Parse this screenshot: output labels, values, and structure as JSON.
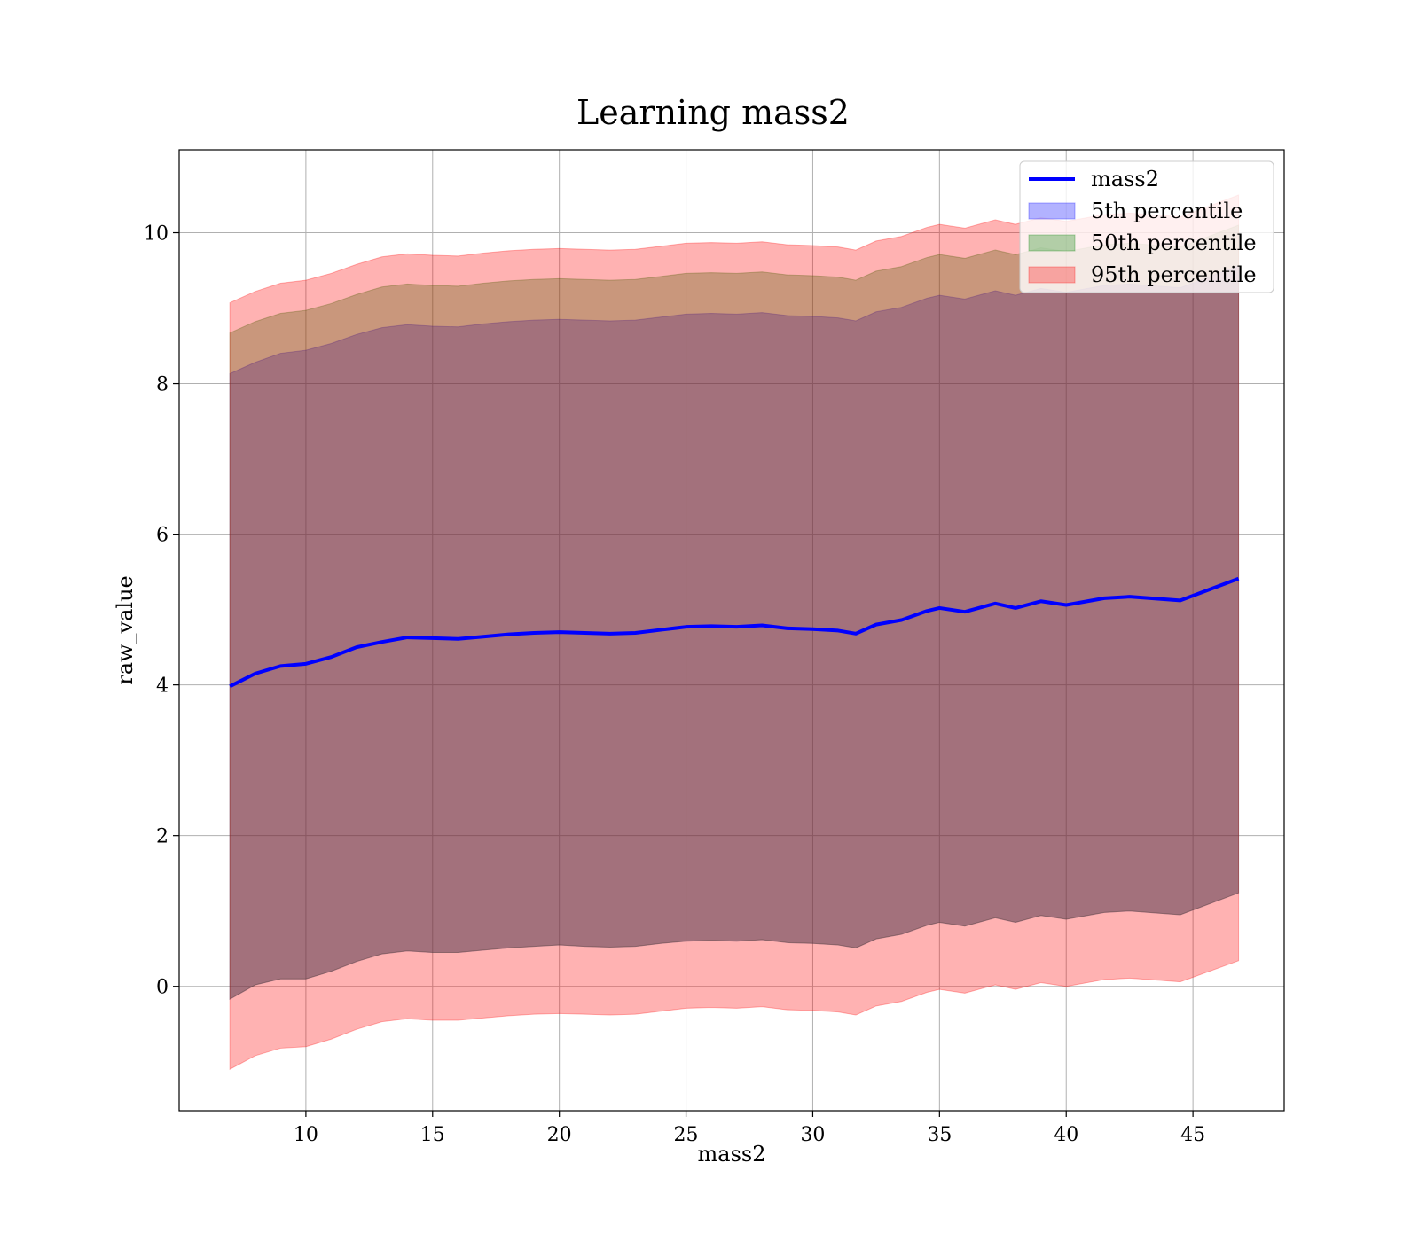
{
  "chart_data": {
    "type": "area",
    "title": "Learning mass2",
    "xlabel": "mass2",
    "ylabel": "raw_value",
    "xlim": [
      5,
      48.6
    ],
    "ylim": [
      -1.65,
      11.1
    ],
    "xticks": [
      10,
      15,
      20,
      25,
      30,
      35,
      40,
      45
    ],
    "xtick_labels": [
      "10",
      "15",
      "20",
      "25",
      "30",
      "35",
      "40",
      "45"
    ],
    "yticks": [
      0,
      2,
      4,
      6,
      8,
      10
    ],
    "ytick_labels": [
      "0",
      "2",
      "4",
      "6",
      "8",
      "10"
    ],
    "grid": true,
    "legend_position": "top-right",
    "x": [
      7.0,
      8.0,
      9.0,
      10.0,
      11.0,
      12.0,
      13.0,
      14.0,
      15.0,
      16.0,
      17.0,
      18.0,
      19.0,
      20.0,
      21.0,
      22.0,
      23.0,
      24.0,
      25.0,
      26.0,
      27.0,
      28.0,
      29.0,
      30.0,
      31.0,
      31.7,
      32.5,
      33.5,
      34.5,
      35.0,
      36.0,
      37.2,
      38.0,
      39.0,
      40.0,
      41.5,
      42.5,
      44.5,
      46.8
    ],
    "series": [
      {
        "name": "mass2",
        "kind": "line",
        "color": "#0000ff",
        "values": [
          3.98,
          4.15,
          4.25,
          4.28,
          4.37,
          4.5,
          4.57,
          4.63,
          4.62,
          4.61,
          4.64,
          4.67,
          4.69,
          4.7,
          4.69,
          4.68,
          4.69,
          4.73,
          4.77,
          4.78,
          4.77,
          4.79,
          4.75,
          4.74,
          4.72,
          4.68,
          4.8,
          4.86,
          4.98,
          5.02,
          4.97,
          5.08,
          5.02,
          5.11,
          5.06,
          5.15,
          5.17,
          5.12,
          5.41
        ]
      },
      {
        "name": "5th percentile",
        "kind": "band",
        "color": "#0000ff",
        "lower": [
          -0.17,
          0.02,
          0.1,
          0.1,
          0.2,
          0.33,
          0.43,
          0.47,
          0.45,
          0.45,
          0.48,
          0.51,
          0.53,
          0.55,
          0.53,
          0.52,
          0.53,
          0.57,
          0.6,
          0.61,
          0.6,
          0.62,
          0.58,
          0.57,
          0.55,
          0.51,
          0.63,
          0.69,
          0.81,
          0.85,
          0.8,
          0.91,
          0.85,
          0.94,
          0.89,
          0.98,
          1.0,
          0.95,
          1.24
        ],
        "upper": [
          8.13,
          8.28,
          8.4,
          8.44,
          8.53,
          8.65,
          8.74,
          8.78,
          8.76,
          8.75,
          8.79,
          8.82,
          8.84,
          8.85,
          8.84,
          8.83,
          8.84,
          8.88,
          8.92,
          8.93,
          8.92,
          8.94,
          8.9,
          8.89,
          8.87,
          8.83,
          8.95,
          9.01,
          9.13,
          9.17,
          9.12,
          9.23,
          9.17,
          9.26,
          9.21,
          9.3,
          9.32,
          9.27,
          9.56
        ]
      },
      {
        "name": "50th percentile",
        "kind": "band",
        "color": "#008000",
        "lower": [
          -0.17,
          0.02,
          0.1,
          0.1,
          0.2,
          0.33,
          0.43,
          0.47,
          0.45,
          0.45,
          0.48,
          0.51,
          0.53,
          0.55,
          0.53,
          0.52,
          0.53,
          0.57,
          0.6,
          0.61,
          0.6,
          0.62,
          0.58,
          0.57,
          0.55,
          0.51,
          0.63,
          0.69,
          0.81,
          0.85,
          0.8,
          0.91,
          0.85,
          0.94,
          0.89,
          0.98,
          1.0,
          0.95,
          1.24
        ],
        "upper": [
          8.67,
          8.82,
          8.93,
          8.97,
          9.06,
          9.18,
          9.28,
          9.32,
          9.3,
          9.29,
          9.33,
          9.36,
          9.38,
          9.39,
          9.38,
          9.37,
          9.38,
          9.42,
          9.46,
          9.47,
          9.46,
          9.48,
          9.44,
          9.43,
          9.41,
          9.37,
          9.49,
          9.55,
          9.67,
          9.71,
          9.66,
          9.77,
          9.71,
          9.8,
          9.75,
          9.84,
          9.86,
          9.81,
          10.1
        ]
      },
      {
        "name": "95th percentile",
        "kind": "band",
        "color": "#ff0000",
        "lower": [
          -1.1,
          -0.92,
          -0.82,
          -0.8,
          -0.7,
          -0.57,
          -0.47,
          -0.43,
          -0.45,
          -0.45,
          -0.42,
          -0.39,
          -0.37,
          -0.36,
          -0.37,
          -0.38,
          -0.37,
          -0.33,
          -0.29,
          -0.28,
          -0.29,
          -0.27,
          -0.31,
          -0.32,
          -0.34,
          -0.38,
          -0.26,
          -0.2,
          -0.08,
          -0.04,
          -0.09,
          0.02,
          -0.04,
          0.05,
          0.0,
          0.09,
          0.11,
          0.06,
          0.34
        ],
        "upper": [
          9.07,
          9.22,
          9.33,
          9.37,
          9.46,
          9.58,
          9.68,
          9.72,
          9.7,
          9.69,
          9.73,
          9.76,
          9.78,
          9.79,
          9.78,
          9.77,
          9.78,
          9.82,
          9.86,
          9.87,
          9.86,
          9.88,
          9.84,
          9.83,
          9.81,
          9.77,
          9.89,
          9.95,
          10.07,
          10.11,
          10.06,
          10.17,
          10.11,
          10.2,
          10.15,
          10.24,
          10.26,
          10.21,
          10.5
        ]
      }
    ],
    "legend": [
      {
        "label": "mass2",
        "kind": "line",
        "color": "#0000ff"
      },
      {
        "label": "5th percentile",
        "kind": "patch",
        "color": "#0000ff"
      },
      {
        "label": "50th percentile",
        "kind": "patch",
        "color": "#008000"
      },
      {
        "label": "95th percentile",
        "kind": "patch",
        "color": "#ff0000"
      }
    ]
  }
}
